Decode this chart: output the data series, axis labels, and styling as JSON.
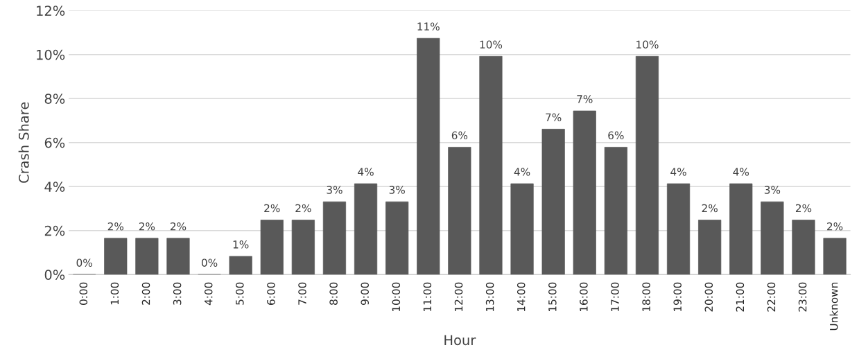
{
  "chart_data": {
    "type": "bar",
    "xlabel": "Hour",
    "ylabel": "Crash Share",
    "categories": [
      "0:00",
      "1:00",
      "2:00",
      "3:00",
      "4:00",
      "5:00",
      "6:00",
      "7:00",
      "8:00",
      "9:00",
      "10:00",
      "11:00",
      "12:00",
      "13:00",
      "14:00",
      "15:00",
      "16:00",
      "17:00",
      "18:00",
      "19:00",
      "20:00",
      "21:00",
      "22:00",
      "23:00",
      "Unknown"
    ],
    "values": [
      0,
      1.65,
      1.65,
      1.65,
      0,
      0.83,
      2.48,
      2.48,
      3.31,
      4.13,
      3.31,
      10.74,
      5.79,
      9.92,
      4.13,
      6.61,
      7.44,
      5.79,
      9.92,
      4.13,
      2.48,
      4.13,
      3.31,
      2.48,
      1.65
    ],
    "value_labels": [
      "0%",
      "2%",
      "2%",
      "2%",
      "0%",
      "1%",
      "2%",
      "2%",
      "3%",
      "4%",
      "3%",
      "11%",
      "6%",
      "10%",
      "4%",
      "7%",
      "7%",
      "6%",
      "10%",
      "4%",
      "2%",
      "4%",
      "3%",
      "2%",
      "2%"
    ],
    "color": "#595959",
    "ylim": [
      0,
      12
    ],
    "yticks": [
      {
        "value": 0,
        "label": "0%"
      },
      {
        "value": 2,
        "label": "2%"
      },
      {
        "value": 4,
        "label": "4%"
      },
      {
        "value": 6,
        "label": "6%"
      },
      {
        "value": 8,
        "label": "8%"
      },
      {
        "value": 10,
        "label": "10%"
      },
      {
        "value": 12,
        "label": "12%"
      }
    ],
    "grid": "y",
    "legend": false
  }
}
